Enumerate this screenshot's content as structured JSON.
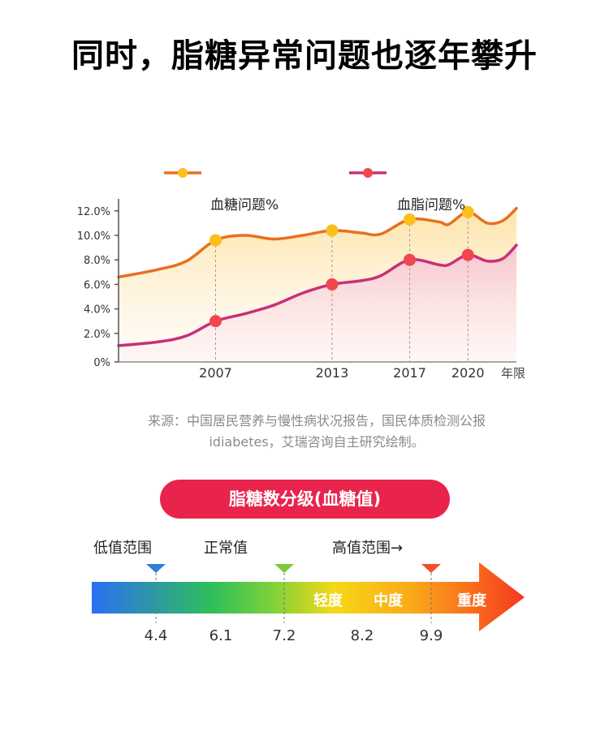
{
  "title": "同时，脂糖异常问题也逐年攀升",
  "chart_data": {
    "type": "area",
    "title": "",
    "xlabel": "年限",
    "ylabel": "",
    "ylim": [
      0,
      12
    ],
    "y_ticks": [
      "0%",
      "2.0%",
      "4.0%",
      "6.0%",
      "8.0%",
      "10.0%",
      "12.0%"
    ],
    "y_tick_values": [
      0,
      2,
      4,
      6,
      8,
      10,
      12
    ],
    "categories": [
      "2007",
      "2013",
      "2017",
      "2020"
    ],
    "x_extent": [
      2002,
      2022.5
    ],
    "legend": {
      "placement": "top",
      "entries": [
        "血糖问题%",
        "血脂问题%"
      ]
    },
    "series": [
      {
        "name": "血糖问题%",
        "line_color": "#e8701e",
        "marker_color": "#fbbf1a",
        "fill_color": "#fde9b8",
        "values": [
          9.6,
          10.4,
          11.3,
          11.9
        ],
        "curve": [
          [
            2002,
            6.6
          ],
          [
            2004,
            7.2
          ],
          [
            2005.5,
            7.9
          ],
          [
            2007,
            9.6
          ],
          [
            2008.5,
            10.0
          ],
          [
            2010,
            9.7
          ],
          [
            2011.5,
            10.0
          ],
          [
            2013,
            10.4
          ],
          [
            2014.5,
            10.2
          ],
          [
            2015.5,
            10.1
          ],
          [
            2017,
            11.3
          ],
          [
            2018.5,
            11.1
          ],
          [
            2019,
            10.9
          ],
          [
            2020,
            11.9
          ],
          [
            2021,
            11.0
          ],
          [
            2021.8,
            11.2
          ],
          [
            2022.5,
            12.2
          ]
        ]
      },
      {
        "name": "血脂问题%",
        "line_color": "#c8307a",
        "marker_color": "#f24650",
        "fill_color": "#f9d3dc",
        "values": [
          3.0,
          6.0,
          8.0,
          8.4
        ],
        "curve": [
          [
            2002,
            1.0
          ],
          [
            2004,
            1.3
          ],
          [
            2005.5,
            1.8
          ],
          [
            2007,
            3.0
          ],
          [
            2008.5,
            3.6
          ],
          [
            2010,
            4.3
          ],
          [
            2011.5,
            5.3
          ],
          [
            2013,
            6.0
          ],
          [
            2014.5,
            6.3
          ],
          [
            2015.5,
            6.7
          ],
          [
            2017,
            8.0
          ],
          [
            2018.5,
            7.6
          ],
          [
            2019,
            7.6
          ],
          [
            2020,
            8.4
          ],
          [
            2021,
            7.9
          ],
          [
            2021.8,
            8.1
          ],
          [
            2022.5,
            9.2
          ]
        ]
      }
    ]
  },
  "source": {
    "line1": "来源：中国居民营养与慢性病状况报告，国民体质检测公报",
    "line2": "idiabetes，艾瑞咨询自主研究绘制。"
  },
  "scale": {
    "header": "脂糖数分级(血糖值)",
    "range_labels": {
      "low": "低值范围",
      "normal": "正常值",
      "high": "高值范围→"
    },
    "markers": [
      {
        "value": "4.4",
        "color": "#2f7fd6"
      },
      {
        "value": "7.2",
        "color": "#7cc93a"
      },
      {
        "value": "9.9",
        "color": "#f0502a"
      }
    ],
    "ticks": [
      "4.4",
      "6.1",
      "7.2",
      "8.2",
      "9.9"
    ],
    "bands": [
      "轻度",
      "中度",
      "重度"
    ],
    "gradient": [
      "#2a6ff0",
      "#2fc05a",
      "#7fd23a",
      "#f5d816",
      "#fba91a",
      "#f5381e"
    ]
  }
}
